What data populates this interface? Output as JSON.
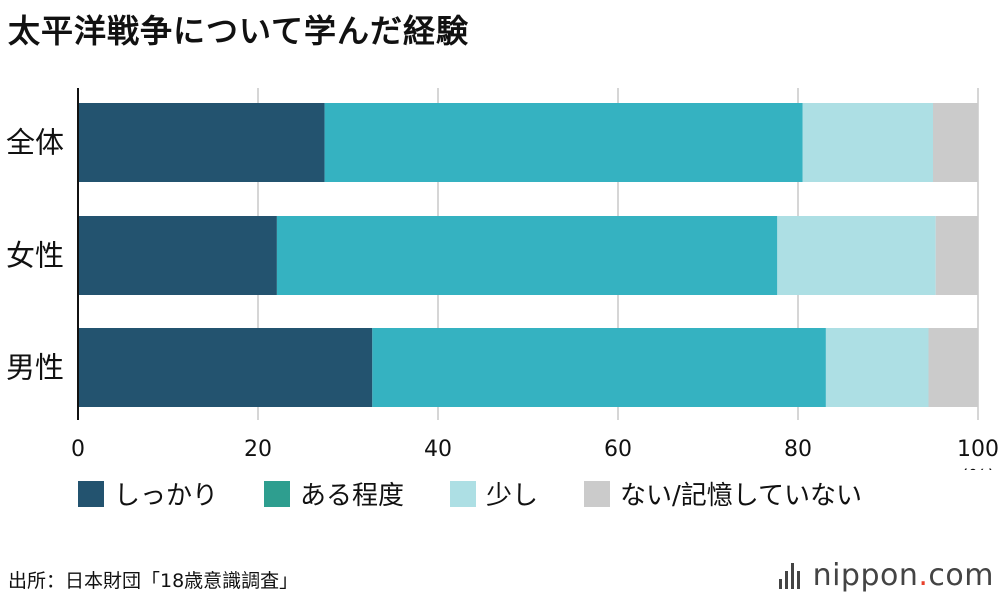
{
  "title": "太平洋戦争について学んだ経験",
  "chart_data": {
    "type": "bar",
    "orientation": "horizontal",
    "stacked": true,
    "categories": [
      "全体",
      "女性",
      "男性"
    ],
    "series": [
      {
        "name": "しっかり",
        "values": [
          27.4,
          22.1,
          32.7
        ],
        "color": "#23536f"
      },
      {
        "name": "ある程度",
        "values": [
          53.1,
          55.6,
          50.4
        ],
        "color": "#35b2c1"
      },
      {
        "name": "少し",
        "values": [
          14.5,
          17.6,
          11.4
        ],
        "color": "#addfe4"
      },
      {
        "name": "ない/記憶していない",
        "values": [
          5.0,
          4.7,
          5.5
        ],
        "color": "#cbcbcb"
      }
    ],
    "xlim": [
      0,
      100
    ],
    "xticks": [
      "0",
      "20",
      "40",
      "60",
      "80",
      "100"
    ],
    "xunit": "(%)",
    "grid": true,
    "legend": "bottom"
  },
  "legend": [
    {
      "label": "しっかり",
      "color": "#23536f"
    },
    {
      "label": "ある程度",
      "color": "#2e9e8f"
    },
    {
      "label": "少し",
      "color": "#addfe4"
    },
    {
      "label": "ない/記憶していない",
      "color": "#cbcbcb"
    }
  ],
  "source": "出所：日本財団「18歳意識調査」",
  "logo": {
    "name": "nippon",
    "dot": ".",
    "suffix": "com"
  }
}
